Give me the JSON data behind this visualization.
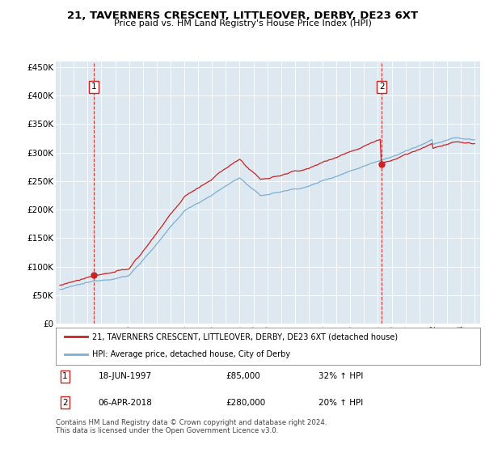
{
  "title": "21, TAVERNERS CRESCENT, LITTLEOVER, DERBY, DE23 6XT",
  "subtitle": "Price paid vs. HM Land Registry's House Price Index (HPI)",
  "legend_line1": "21, TAVERNERS CRESCENT, LITTLEOVER, DERBY, DE23 6XT (detached house)",
  "legend_line2": "HPI: Average price, detached house, City of Derby",
  "annotation1_date": "18-JUN-1997",
  "annotation1_price": "£85,000",
  "annotation1_hpi": "32% ↑ HPI",
  "annotation2_date": "06-APR-2018",
  "annotation2_price": "£280,000",
  "annotation2_hpi": "20% ↑ HPI",
  "footnote": "Contains HM Land Registry data © Crown copyright and database right 2024.\nThis data is licensed under the Open Government Licence v3.0.",
  "hpi_color": "#7bafd4",
  "price_color": "#cc2222",
  "marker_color": "#cc2222",
  "dashed_color": "#cc2222",
  "bg_color": "#dde8f0",
  "grid_color": "#ffffff",
  "ylim_min": 0,
  "ylim_max": 460000,
  "purchase1_year": 1997.46,
  "purchase1_value": 85000,
  "purchase2_year": 2018.27,
  "purchase2_value": 280000
}
